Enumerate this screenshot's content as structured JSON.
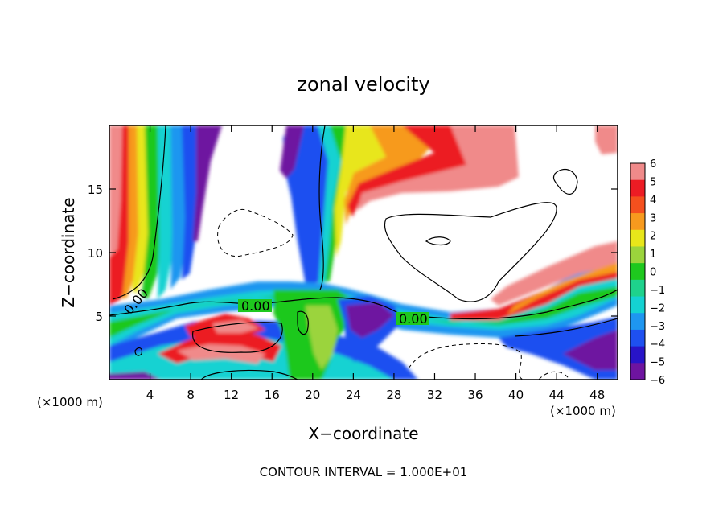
{
  "chart_data": {
    "type": "heatmap",
    "title": "zonal velocity",
    "xlabel": "X−coordinate",
    "ylabel": "Z−coordinate",
    "x_unit_left": "(×1000 m)",
    "x_unit_right": "(×1000 m)",
    "footer": "CONTOUR INTERVAL = 1.000E+01",
    "xlim": [
      0,
      50
    ],
    "ylim": [
      0,
      20
    ],
    "x_ticks": [
      4,
      8,
      12,
      16,
      20,
      24,
      28,
      32,
      36,
      40,
      44,
      48
    ],
    "y_ticks": [
      5,
      10,
      15
    ],
    "colorbar": {
      "ticks": [
        6,
        5,
        4,
        3,
        2,
        1,
        0,
        -1,
        -2,
        -3,
        -4,
        -5,
        -6
      ],
      "tick_labels": [
        "6",
        "5",
        "4",
        "3",
        "2",
        "1",
        "0",
        "−1",
        "−2",
        "−3",
        "−4",
        "−5",
        "−6"
      ],
      "colors": [
        "#f08a8a",
        "#ec1c24",
        "#f4501e",
        "#f79a1e",
        "#e8e61a",
        "#9bd43c",
        "#1ec81e",
        "#1ed28c",
        "#14d2d2",
        "#1e96f0",
        "#1e50f0",
        "#2814c8",
        "#6e14a0"
      ]
    },
    "contour_labels": [
      {
        "text": "0.00",
        "x": 3,
        "z": 6
      },
      {
        "text": "0.00",
        "x": 14,
        "z": 5.6
      },
      {
        "text": "0.00",
        "x": 31,
        "z": 4.8
      }
    ]
  }
}
